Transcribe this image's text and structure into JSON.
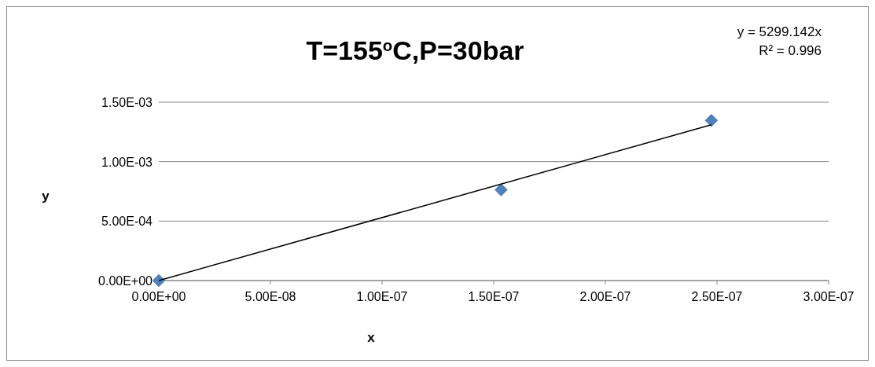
{
  "chart_data": {
    "type": "scatter",
    "title": "T=155$^{o}$C,P=30bar",
    "xlabel": "x",
    "ylabel": "y",
    "series": [
      {
        "color": "#4f81bd",
        "x": [
          0,
          1.533e-07,
          2.475e-07
        ],
        "values": [
          0,
          0.000763,
          0.001346
        ],
        "marker": "diamond"
      },
      {
        "type": "line",
        "color": "#000000",
        "x": [
          0,
          2.475e-07
        ],
        "values": [
          0,
          0.00131
        ],
        "marker": "none",
        "line_style": "solid"
      }
    ],
    "xlim": [
      0,
      3e-07
    ],
    "xticks": [
      {
        "value": 0,
        "label": "0.00E+00"
      },
      {
        "value": 5e-08,
        "label": "5.00E-08"
      },
      {
        "value": 1e-07,
        "label": "1.00E-07"
      },
      {
        "value": 1.5e-07,
        "label": "1.50E-07"
      },
      {
        "value": 2e-07,
        "label": "2.00E-07"
      },
      {
        "value": 2.5e-07,
        "label": "2.50E-07"
      },
      {
        "value": 3e-07,
        "label": "3.00E-07"
      }
    ],
    "ylim": [
      0,
      0.0015
    ],
    "yticks": [
      {
        "value": 0,
        "label": "0.00E+00"
      },
      {
        "value": 0.0005,
        "label": "5.00E-04"
      },
      {
        "value": 0.001,
        "label": "1.00E-03"
      },
      {
        "value": 0.0015,
        "label": "1.50E-03"
      }
    ],
    "grid": "y",
    "annotations": [
      "y = 5299.142x",
      "R² = 0.996"
    ]
  }
}
